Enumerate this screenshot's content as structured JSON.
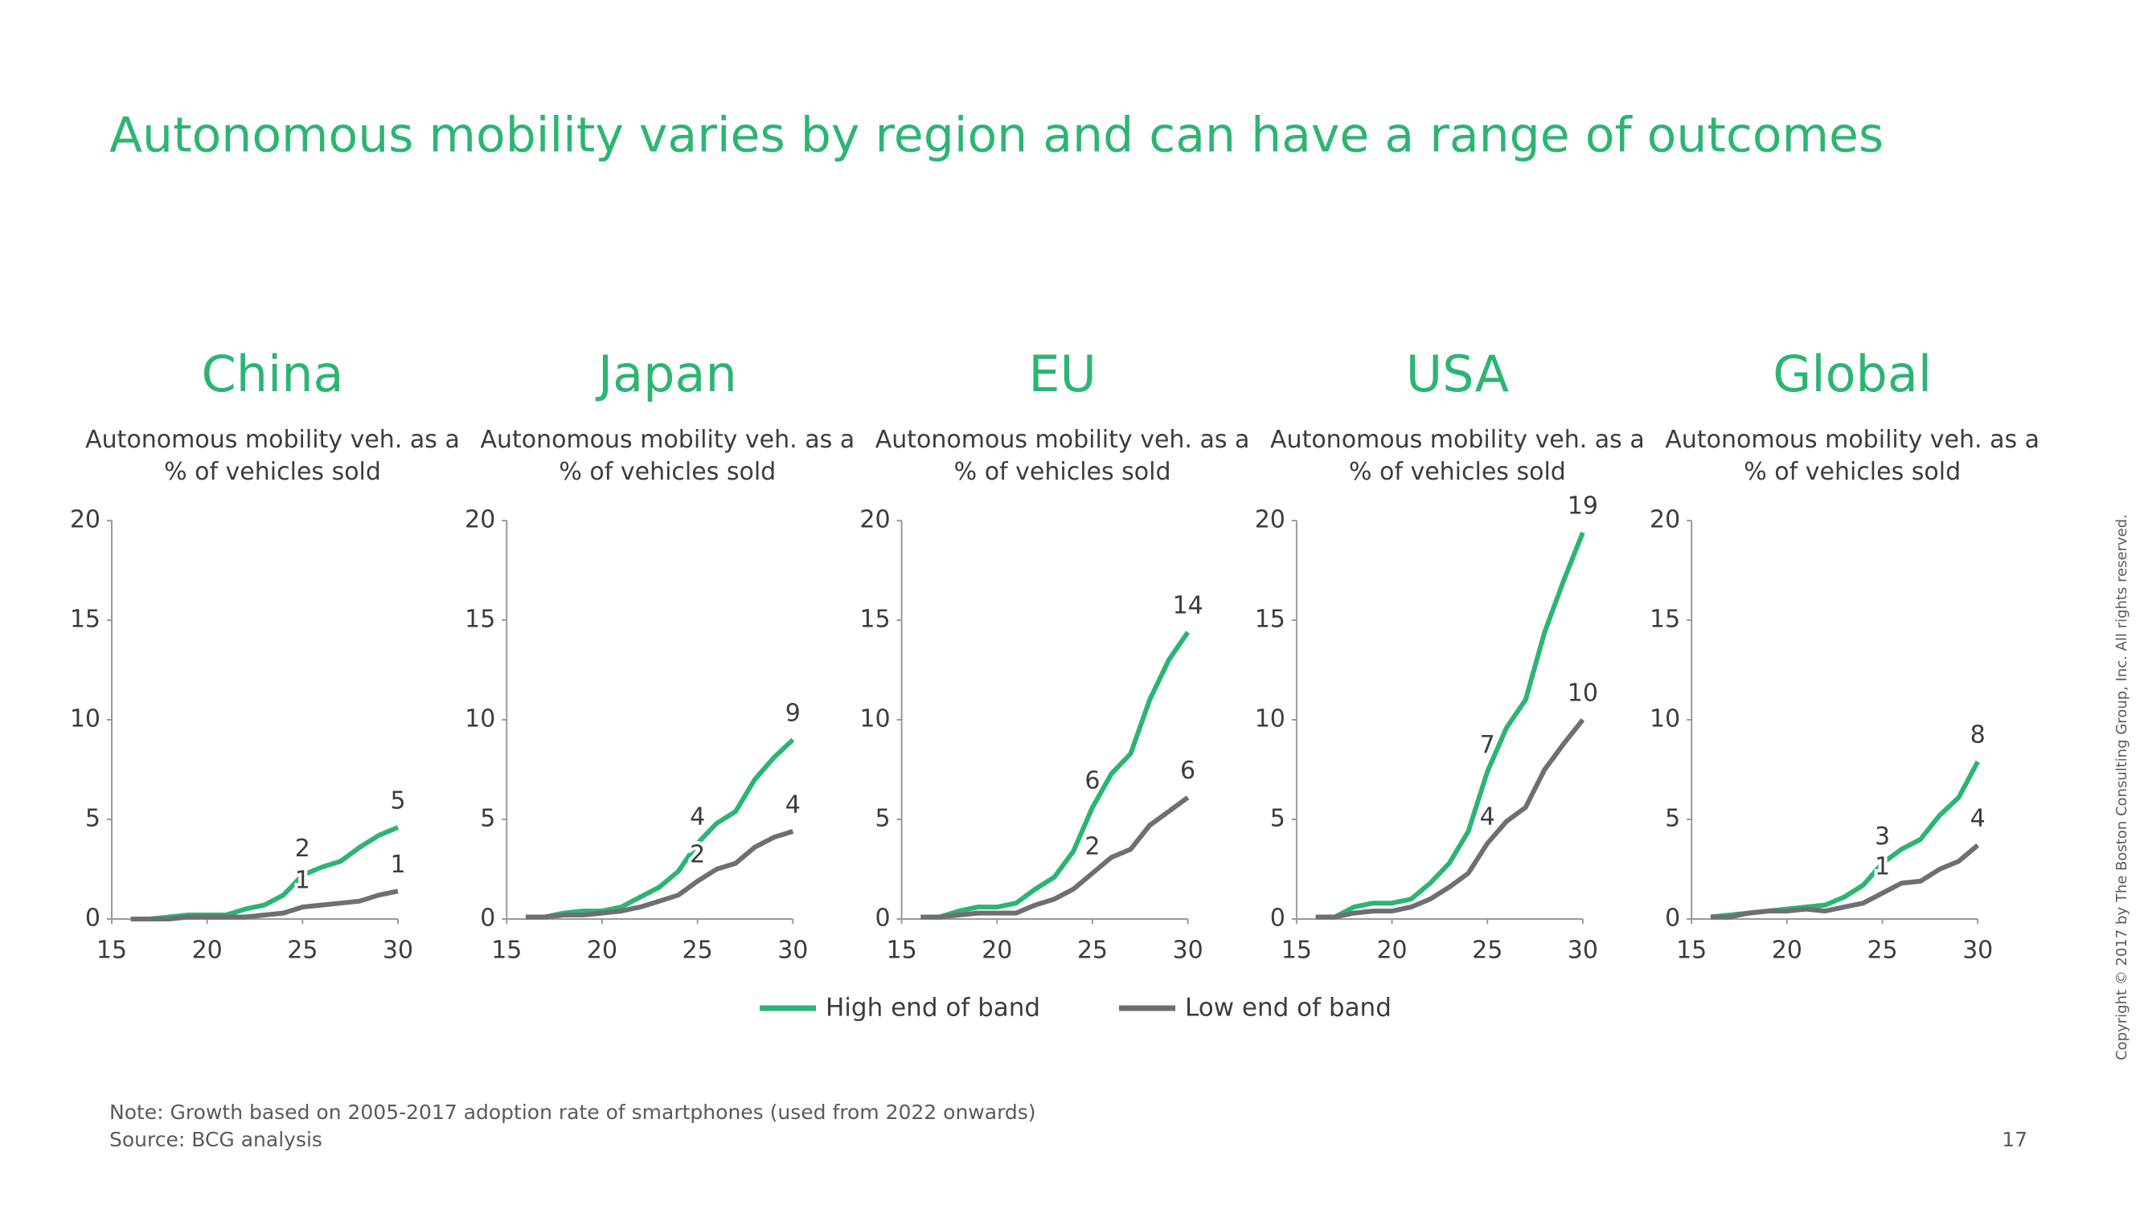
{
  "title": "Autonomous mobility varies by region and can have a range of outcomes",
  "legend": [
    {
      "name": "High end of band",
      "color": "#2cb572"
    },
    {
      "name": "Low end of band",
      "color": "#6e6f73"
    }
  ],
  "chart_data": [
    {
      "type": "line",
      "title": "China",
      "subtitle": "Autonomous mobility veh. as a % of vehicles sold",
      "x": [
        16,
        17,
        18,
        19,
        20,
        21,
        22,
        23,
        24,
        25,
        26,
        27,
        28,
        29,
        30
      ],
      "xlim": [
        15,
        30
      ],
      "xticks": [
        15,
        20,
        25,
        30
      ],
      "ylim": [
        0,
        20
      ],
      "yticks": [
        0,
        5,
        10,
        15,
        20
      ],
      "series": [
        {
          "color": "#2cb572",
          "values": [
            0,
            0,
            0.1,
            0.2,
            0.2,
            0.2,
            0.5,
            0.7,
            1.2,
            2.2,
            2.6,
            2.9,
            3.6,
            4.2,
            4.6
          ],
          "value_labels": [
            null,
            null,
            null,
            null,
            null,
            null,
            null,
            null,
            null,
            "2",
            null,
            null,
            null,
            null,
            "5"
          ]
        },
        {
          "color": "#6e6f73",
          "values": [
            0,
            0,
            0,
            0.1,
            0.1,
            0.1,
            0.1,
            0.2,
            0.3,
            0.6,
            0.7,
            0.8,
            0.9,
            1.2,
            1.4
          ],
          "value_labels": [
            null,
            null,
            null,
            null,
            null,
            null,
            null,
            null,
            null,
            "1",
            null,
            null,
            null,
            null,
            "1"
          ]
        }
      ]
    },
    {
      "type": "line",
      "title": "Japan",
      "subtitle": "Autonomous mobility veh. as a % of vehicles sold",
      "x": [
        16,
        17,
        18,
        19,
        20,
        21,
        22,
        23,
        24,
        25,
        26,
        27,
        28,
        29,
        30
      ],
      "xlim": [
        15,
        30
      ],
      "xticks": [
        15,
        20,
        25,
        30
      ],
      "ylim": [
        0,
        20
      ],
      "yticks": [
        0,
        5,
        10,
        15,
        20
      ],
      "series": [
        {
          "color": "#2cb572",
          "values": [
            0.1,
            0.1,
            0.3,
            0.4,
            0.4,
            0.6,
            1.1,
            1.6,
            2.4,
            3.8,
            4.8,
            5.4,
            7.0,
            8.1,
            9.0
          ],
          "value_labels": [
            null,
            null,
            null,
            null,
            null,
            null,
            null,
            null,
            null,
            "4",
            null,
            null,
            null,
            null,
            "9"
          ]
        },
        {
          "color": "#6e6f73",
          "values": [
            0.1,
            0.1,
            0.2,
            0.2,
            0.3,
            0.4,
            0.6,
            0.9,
            1.2,
            1.9,
            2.5,
            2.8,
            3.6,
            4.1,
            4.4
          ],
          "value_labels": [
            null,
            null,
            null,
            null,
            null,
            null,
            null,
            null,
            null,
            "2",
            null,
            null,
            null,
            null,
            "4"
          ]
        }
      ]
    },
    {
      "type": "line",
      "title": "EU",
      "subtitle": "Autonomous mobility veh. as a % of vehicles sold",
      "x": [
        16,
        17,
        18,
        19,
        20,
        21,
        22,
        23,
        24,
        25,
        26,
        27,
        28,
        29,
        30
      ],
      "xlim": [
        15,
        30
      ],
      "xticks": [
        15,
        20,
        25,
        30
      ],
      "ylim": [
        0,
        20
      ],
      "yticks": [
        0,
        5,
        10,
        15,
        20
      ],
      "series": [
        {
          "color": "#2cb572",
          "values": [
            0.1,
            0.1,
            0.4,
            0.6,
            0.6,
            0.8,
            1.5,
            2.1,
            3.4,
            5.6,
            7.3,
            8.3,
            11.0,
            13.0,
            14.4
          ],
          "value_labels": [
            null,
            null,
            null,
            null,
            null,
            null,
            null,
            null,
            null,
            "6",
            null,
            null,
            null,
            null,
            "14"
          ]
        },
        {
          "color": "#6e6f73",
          "values": [
            0.1,
            0.1,
            0.2,
            0.3,
            0.3,
            0.3,
            0.7,
            1.0,
            1.5,
            2.3,
            3.1,
            3.5,
            4.7,
            5.4,
            6.1
          ],
          "value_labels": [
            null,
            null,
            null,
            null,
            null,
            null,
            null,
            null,
            null,
            "2",
            null,
            null,
            null,
            null,
            "6"
          ]
        }
      ]
    },
    {
      "type": "line",
      "title": "USA",
      "subtitle": "Autonomous mobility veh. as a % of vehicles sold",
      "x": [
        16,
        17,
        18,
        19,
        20,
        21,
        22,
        23,
        24,
        25,
        26,
        27,
        28,
        29,
        30
      ],
      "xlim": [
        15,
        30
      ],
      "xticks": [
        15,
        20,
        25,
        30
      ],
      "ylim": [
        0,
        20
      ],
      "yticks": [
        0,
        5,
        10,
        15,
        20
      ],
      "series": [
        {
          "color": "#2cb572",
          "values": [
            0.1,
            0.1,
            0.6,
            0.8,
            0.8,
            1.0,
            1.8,
            2.8,
            4.4,
            7.4,
            9.6,
            11.0,
            14.4,
            17.0,
            19.4
          ],
          "value_labels": [
            null,
            null,
            null,
            null,
            null,
            null,
            null,
            null,
            null,
            "7",
            null,
            null,
            null,
            null,
            "19"
          ]
        },
        {
          "color": "#6e6f73",
          "values": [
            0.1,
            0.1,
            0.3,
            0.4,
            0.4,
            0.6,
            1.0,
            1.6,
            2.3,
            3.8,
            4.9,
            5.6,
            7.5,
            8.8,
            10.0
          ],
          "value_labels": [
            null,
            null,
            null,
            null,
            null,
            null,
            null,
            null,
            null,
            "4",
            null,
            null,
            null,
            null,
            "10"
          ]
        }
      ]
    },
    {
      "type": "line",
      "title": "Global",
      "subtitle": "Autonomous mobility veh. as a % of vehicles sold",
      "x": [
        16,
        17,
        18,
        19,
        20,
        21,
        22,
        23,
        24,
        25,
        26,
        27,
        28,
        29,
        30
      ],
      "xlim": [
        15,
        30
      ],
      "xticks": [
        15,
        20,
        25,
        30
      ],
      "ylim": [
        0,
        20
      ],
      "yticks": [
        0,
        5,
        10,
        15,
        20
      ],
      "series": [
        {
          "color": "#2cb572",
          "values": [
            0.1,
            0.2,
            0.3,
            0.4,
            0.5,
            0.6,
            0.7,
            1.1,
            1.7,
            2.8,
            3.5,
            4.0,
            5.2,
            6.1,
            7.9
          ],
          "value_labels": [
            null,
            null,
            null,
            null,
            null,
            null,
            null,
            null,
            null,
            "3",
            null,
            null,
            null,
            null,
            "8"
          ]
        },
        {
          "color": "#6e6f73",
          "values": [
            0.1,
            0.1,
            0.3,
            0.4,
            0.4,
            0.5,
            0.4,
            0.6,
            0.8,
            1.3,
            1.8,
            1.9,
            2.5,
            2.9,
            3.7
          ],
          "value_labels": [
            null,
            null,
            null,
            null,
            null,
            null,
            null,
            null,
            null,
            "1",
            null,
            null,
            null,
            null,
            "4"
          ]
        }
      ]
    }
  ],
  "note": "Note: Growth based on 2005-2017 adoption rate of smartphones (used from 2022 onwards)",
  "source": "Source: BCG analysis",
  "page_number": 17,
  "copyright": "Copyright © 2017 by The Boston Consulting Group, Inc. All rights reserved."
}
